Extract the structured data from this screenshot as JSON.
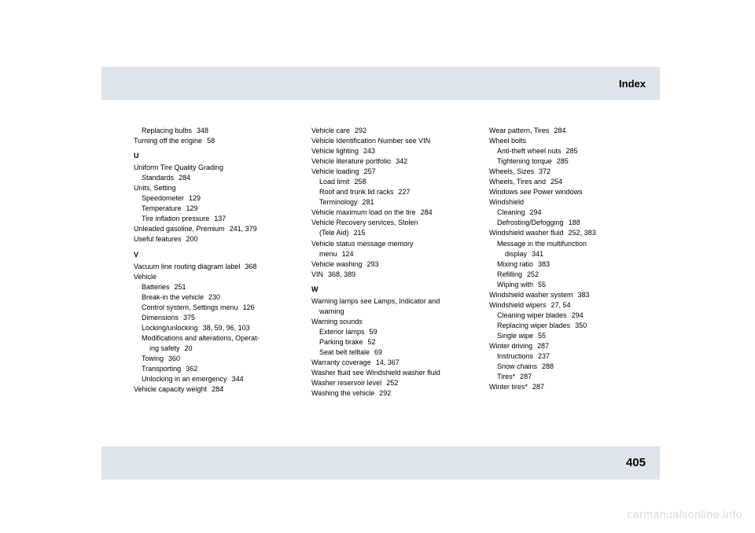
{
  "header": {
    "title": "Index"
  },
  "footer": {
    "page": "405"
  },
  "watermark": "carmanualsonline.info",
  "col1": {
    "e0": {
      "t": "Replacing bulbs",
      "p": "348",
      "indent": 1
    },
    "e1": {
      "t": "Turning off the engine",
      "p": "58",
      "indent": 0
    },
    "letterU": "U",
    "e2": {
      "t": "Uniform Tire Quality Grading",
      "p": "",
      "indent": 0
    },
    "e3": {
      "t": "Standards",
      "p": "284",
      "indent": 1
    },
    "e4": {
      "t": "Units, Setting",
      "p": "",
      "indent": 0
    },
    "e5": {
      "t": "Speedometer",
      "p": "129",
      "indent": 1
    },
    "e6": {
      "t": "Temperature",
      "p": "129",
      "indent": 1
    },
    "e7": {
      "t": "Tire inflation pressure",
      "p": "137",
      "indent": 1
    },
    "e8": {
      "t": "Unleaded gasoline, Premium",
      "p": "241, 379",
      "indent": 0
    },
    "e9": {
      "t": "Useful features",
      "p": "200",
      "indent": 0
    },
    "letterV": "V",
    "e10": {
      "t": "Vacuum line routing diagram label",
      "p": "368",
      "indent": 0
    },
    "e11": {
      "t": "Vehicle",
      "p": "",
      "indent": 0
    },
    "e12": {
      "t": "Batteries",
      "p": "251",
      "indent": 1
    },
    "e13": {
      "t": "Break-in the vehicle",
      "p": "230",
      "indent": 1
    },
    "e14": {
      "t": "Control system, Settings menu",
      "p": "126",
      "indent": 1
    },
    "e15": {
      "t": "Dimensions",
      "p": "375",
      "indent": 1
    },
    "e16": {
      "t": "Locking/unlocking",
      "p": "38, 59, 96, 103",
      "indent": 1
    },
    "e17a": {
      "t": "Modifications and alterations, Operat-",
      "p": "",
      "indent": 1
    },
    "e17b": {
      "t": "ing safety",
      "p": "20",
      "indent": 2
    },
    "e18": {
      "t": "Towing",
      "p": "360",
      "indent": 1
    },
    "e19": {
      "t": "Transporting",
      "p": "362",
      "indent": 1
    },
    "e20": {
      "t": "Unlocking in an emergency",
      "p": "344",
      "indent": 1
    },
    "e21": {
      "t": "Vehicle capacity weight",
      "p": "284",
      "indent": 0
    }
  },
  "col2": {
    "e0": {
      "t": "Vehicle care",
      "p": "292",
      "indent": 0
    },
    "e1": {
      "t": "Vehicle Identification Number see VIN",
      "p": "",
      "indent": 0
    },
    "e2": {
      "t": "Vehicle lighting",
      "p": "243",
      "indent": 0
    },
    "e3": {
      "t": "Vehicle literature portfolio",
      "p": "342",
      "indent": 0
    },
    "e4": {
      "t": "Vehicle loading",
      "p": "257",
      "indent": 0
    },
    "e5": {
      "t": "Load limit",
      "p": "258",
      "indent": 1
    },
    "e6": {
      "t": "Roof and trunk lid racks",
      "p": "227",
      "indent": 1
    },
    "e7": {
      "t": "Terminology",
      "p": "281",
      "indent": 1
    },
    "e8": {
      "t": "Vehicle maximum load on the tire",
      "p": "284",
      "indent": 0
    },
    "e9": {
      "t": "Vehicle Recovery services, Stolen",
      "p": "",
      "indent": 0
    },
    "e10": {
      "t": "(Tele Aid)",
      "p": "215",
      "indent": 1
    },
    "e11": {
      "t": "Vehicle status message memory",
      "p": "",
      "indent": 0
    },
    "e12": {
      "t": "menu",
      "p": "124",
      "indent": 1
    },
    "e13": {
      "t": "Vehicle washing",
      "p": "293",
      "indent": 0
    },
    "e14": {
      "t": "VIN",
      "p": "368, 389",
      "indent": 0
    },
    "letterW": "W",
    "e15": {
      "t": "Warning lamps see Lamps, Indicator and",
      "p": "",
      "indent": 0
    },
    "e16": {
      "t": "warning",
      "p": "",
      "indent": 1
    },
    "e17": {
      "t": "Warning sounds",
      "p": "",
      "indent": 0
    },
    "e18": {
      "t": "Exterior lamps",
      "p": "59",
      "indent": 1
    },
    "e19": {
      "t": "Parking brake",
      "p": "52",
      "indent": 1
    },
    "e20": {
      "t": "Seat belt telltale",
      "p": "69",
      "indent": 1
    },
    "e21": {
      "t": "Warranty coverage",
      "p": "14, 367",
      "indent": 0
    },
    "e22": {
      "t": "Washer fluid see Windshield washer fluid",
      "p": "",
      "indent": 0
    },
    "e23": {
      "t": "Washer reservoir level",
      "p": "252",
      "indent": 0
    },
    "e24": {
      "t": "Washing the vehicle",
      "p": "292",
      "indent": 0
    }
  },
  "col3": {
    "e0": {
      "t": "Wear pattern, Tires",
      "p": "284",
      "indent": 0
    },
    "e1": {
      "t": "Wheel bolts",
      "p": "",
      "indent": 0
    },
    "e2": {
      "t": "Anti-theft wheel nuts",
      "p": "285",
      "indent": 1
    },
    "e3": {
      "t": "Tightening torque",
      "p": "285",
      "indent": 1
    },
    "e4": {
      "t": "Wheels, Sizes",
      "p": "372",
      "indent": 0
    },
    "e5": {
      "t": "Wheels, Tires and",
      "p": "254",
      "indent": 0
    },
    "e6": {
      "t": "Windows see Power windows",
      "p": "",
      "indent": 0
    },
    "e7": {
      "t": "Windshield",
      "p": "",
      "indent": 0
    },
    "e8": {
      "t": "Cleaning",
      "p": "294",
      "indent": 1
    },
    "e9": {
      "t": "Defrosting/Defogging",
      "p": "188",
      "indent": 1
    },
    "e10": {
      "t": "Windshield washer fluid",
      "p": "252, 383",
      "indent": 0
    },
    "e11": {
      "t": "Message in the multifunction",
      "p": "",
      "indent": 1
    },
    "e12": {
      "t": "display",
      "p": "341",
      "indent": 2
    },
    "e13": {
      "t": "Mixing ratio",
      "p": "383",
      "indent": 1
    },
    "e14": {
      "t": "Refilling",
      "p": "252",
      "indent": 1
    },
    "e15": {
      "t": "Wiping with",
      "p": "55",
      "indent": 1
    },
    "e16": {
      "t": "Windshield washer system",
      "p": "383",
      "indent": 0
    },
    "e17": {
      "t": "Windshield wipers",
      "p": "27, 54",
      "indent": 0
    },
    "e18": {
      "t": "Cleaning wiper blades",
      "p": "294",
      "indent": 1
    },
    "e19": {
      "t": "Replacing wiper blades",
      "p": "350",
      "indent": 1
    },
    "e20": {
      "t": "Single wipe",
      "p": "55",
      "indent": 1
    },
    "e21": {
      "t": "Winter driving",
      "p": "287",
      "indent": 0
    },
    "e22": {
      "t": "Instructions",
      "p": "237",
      "indent": 1
    },
    "e23": {
      "t": "Snow chains",
      "p": "288",
      "indent": 1
    },
    "e24": {
      "t": "Tires*",
      "p": "287",
      "indent": 1
    },
    "e25": {
      "t": "Winter tires*",
      "p": "287",
      "indent": 0
    }
  }
}
